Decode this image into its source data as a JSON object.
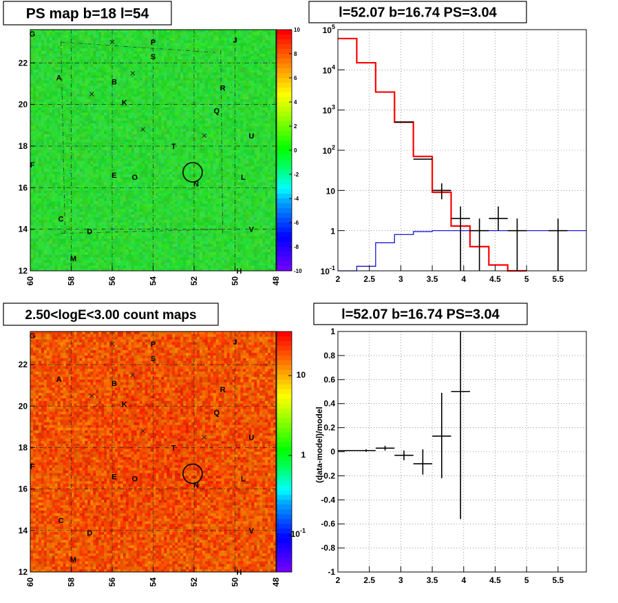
{
  "chart_data": [
    {
      "id": "ps_map",
      "type": "heatmap",
      "title": "PS map b=18 l=54",
      "x_ticks": [
        "60",
        "58",
        "56",
        "54",
        "52",
        "50",
        "48"
      ],
      "y_ticks": [
        "12",
        "14",
        "16",
        "18",
        "20",
        "22"
      ],
      "xlim": [
        60,
        48
      ],
      "ylim": [
        12,
        23.6
      ],
      "z_range": [
        -10,
        10
      ],
      "colorbar_ticks": [
        "10",
        "8",
        "6",
        "4",
        "2",
        "0",
        "-2",
        "-4",
        "-6",
        "-8",
        "-10"
      ],
      "grid": true
    },
    {
      "id": "spectrum",
      "type": "line",
      "title": "l=52.07 b=16.74 PS=3.04",
      "x_ticks": [
        "2",
        "2.5",
        "3",
        "3.5",
        "4",
        "4.5",
        "5",
        "5.5"
      ],
      "y_ticks": [
        "10^-1",
        "1",
        "10",
        "10^2",
        "10^3",
        "10^4",
        "10^5"
      ],
      "xlim": [
        2,
        5.95
      ],
      "ylim": [
        0.1,
        100000
      ],
      "log_y": true,
      "grid": true,
      "series": [
        {
          "color": "#ff0000",
          "step_edges": [
            2.0,
            2.3,
            2.6,
            2.9,
            3.2,
            3.5,
            3.8,
            4.1,
            4.4,
            4.7,
            5.0
          ],
          "values": [
            60000,
            15000,
            2800,
            500,
            70,
            9,
            1.3,
            0.4,
            0.14,
            0.09
          ]
        },
        {
          "color": "#0000cc",
          "step_edges": [
            2.0,
            2.3,
            2.6,
            2.9,
            3.2,
            3.5,
            3.8,
            4.1,
            4.4,
            4.7,
            5.0,
            5.3,
            5.6,
            5.95
          ],
          "values": [
            0.1,
            0.13,
            0.5,
            0.8,
            0.95,
            1.0,
            1.0,
            1.0,
            1.0,
            1.0,
            1.0,
            1.0,
            1.0
          ]
        },
        {
          "color": "#000000",
          "type": "errorbars",
          "x": [
            3.05,
            3.35,
            3.65,
            3.95,
            4.25,
            4.55,
            4.85,
            5.5
          ],
          "xerr": 0.15,
          "y": [
            500,
            60,
            10,
            2,
            1,
            2,
            1,
            1
          ],
          "ylo": [
            500,
            60,
            6,
            0.1,
            0.1,
            1,
            0.1,
            0.1
          ],
          "yhi": [
            500,
            60,
            15,
            4,
            2,
            4,
            2,
            2
          ]
        }
      ]
    },
    {
      "id": "count_map",
      "type": "heatmap",
      "title": "2.50<logE<3.00 count maps",
      "x_ticks": [
        "60",
        "58",
        "56",
        "54",
        "52",
        "50",
        "48"
      ],
      "y_ticks": [
        "12",
        "14",
        "16",
        "18",
        "20",
        "22"
      ],
      "xlim": [
        60,
        48
      ],
      "ylim": [
        12,
        23.6
      ],
      "colorbar_ticks": [
        "10",
        "1",
        "10^-1"
      ],
      "log_z": true,
      "grid": true
    },
    {
      "id": "residual",
      "type": "scatter",
      "title": "l=52.07 b=16.74 PS=3.04",
      "ylabel": "(data-model)/model",
      "x_ticks": [
        "2",
        "2.5",
        "3",
        "3.5",
        "4",
        "4.5",
        "5",
        "5.5"
      ],
      "y_ticks": [
        "1",
        "0.8",
        "0.6",
        "0.4",
        "0.2",
        "0",
        "-0.2",
        "-0.4",
        "-0.6",
        "-0.8",
        "-1"
      ],
      "xlim": [
        2,
        5.95
      ],
      "ylim": [
        -1,
        1
      ],
      "grid": true,
      "points": [
        {
          "x": 2.15,
          "y": 0.01,
          "xerr": 0.15,
          "ylo": 0.01,
          "yhi": 0.01
        },
        {
          "x": 2.45,
          "y": 0.01,
          "xerr": 0.15,
          "ylo": 0.0,
          "yhi": 0.02
        },
        {
          "x": 2.75,
          "y": 0.03,
          "xerr": 0.15,
          "ylo": 0.01,
          "yhi": 0.05
        },
        {
          "x": 3.05,
          "y": -0.03,
          "xerr": 0.15,
          "ylo": -0.07,
          "yhi": 0.01
        },
        {
          "x": 3.35,
          "y": -0.1,
          "xerr": 0.15,
          "ylo": -0.19,
          "yhi": 0.02
        },
        {
          "x": 3.65,
          "y": 0.13,
          "xerr": 0.15,
          "ylo": -0.22,
          "yhi": 0.49
        },
        {
          "x": 3.95,
          "y": 0.5,
          "xerr": 0.15,
          "ylo": -0.56,
          "yhi": 1.0
        }
      ]
    }
  ],
  "map_labels": [
    {
      "text": "G",
      "l": 59.9,
      "b": 23.4
    },
    {
      "text": "P",
      "l": 54.0,
      "b": 23.0
    },
    {
      "text": "J",
      "l": 50.0,
      "b": 23.1
    },
    {
      "text": "S",
      "l": 54.0,
      "b": 22.3
    },
    {
      "text": "A",
      "l": 58.6,
      "b": 21.3
    },
    {
      "text": "B",
      "l": 55.9,
      "b": 21.1
    },
    {
      "text": "R",
      "l": 50.6,
      "b": 20.8
    },
    {
      "text": "K",
      "l": 55.4,
      "b": 20.1
    },
    {
      "text": "Q",
      "l": 50.9,
      "b": 19.7
    },
    {
      "text": "U",
      "l": 49.2,
      "b": 18.5
    },
    {
      "text": "T",
      "l": 53.0,
      "b": 18.0
    },
    {
      "text": "F",
      "l": 59.9,
      "b": 17.1
    },
    {
      "text": "E",
      "l": 55.9,
      "b": 16.6
    },
    {
      "text": "O",
      "l": 54.9,
      "b": 16.5
    },
    {
      "text": "N",
      "l": 51.9,
      "b": 16.2
    },
    {
      "text": "L",
      "l": 49.6,
      "b": 16.5
    },
    {
      "text": "C",
      "l": 58.5,
      "b": 14.5
    },
    {
      "text": "D",
      "l": 57.1,
      "b": 13.9
    },
    {
      "text": "V",
      "l": 49.2,
      "b": 14.0
    },
    {
      "text": "M",
      "l": 57.9,
      "b": 12.6
    },
    {
      "text": "H",
      "l": 49.8,
      "b": 12.0
    }
  ]
}
